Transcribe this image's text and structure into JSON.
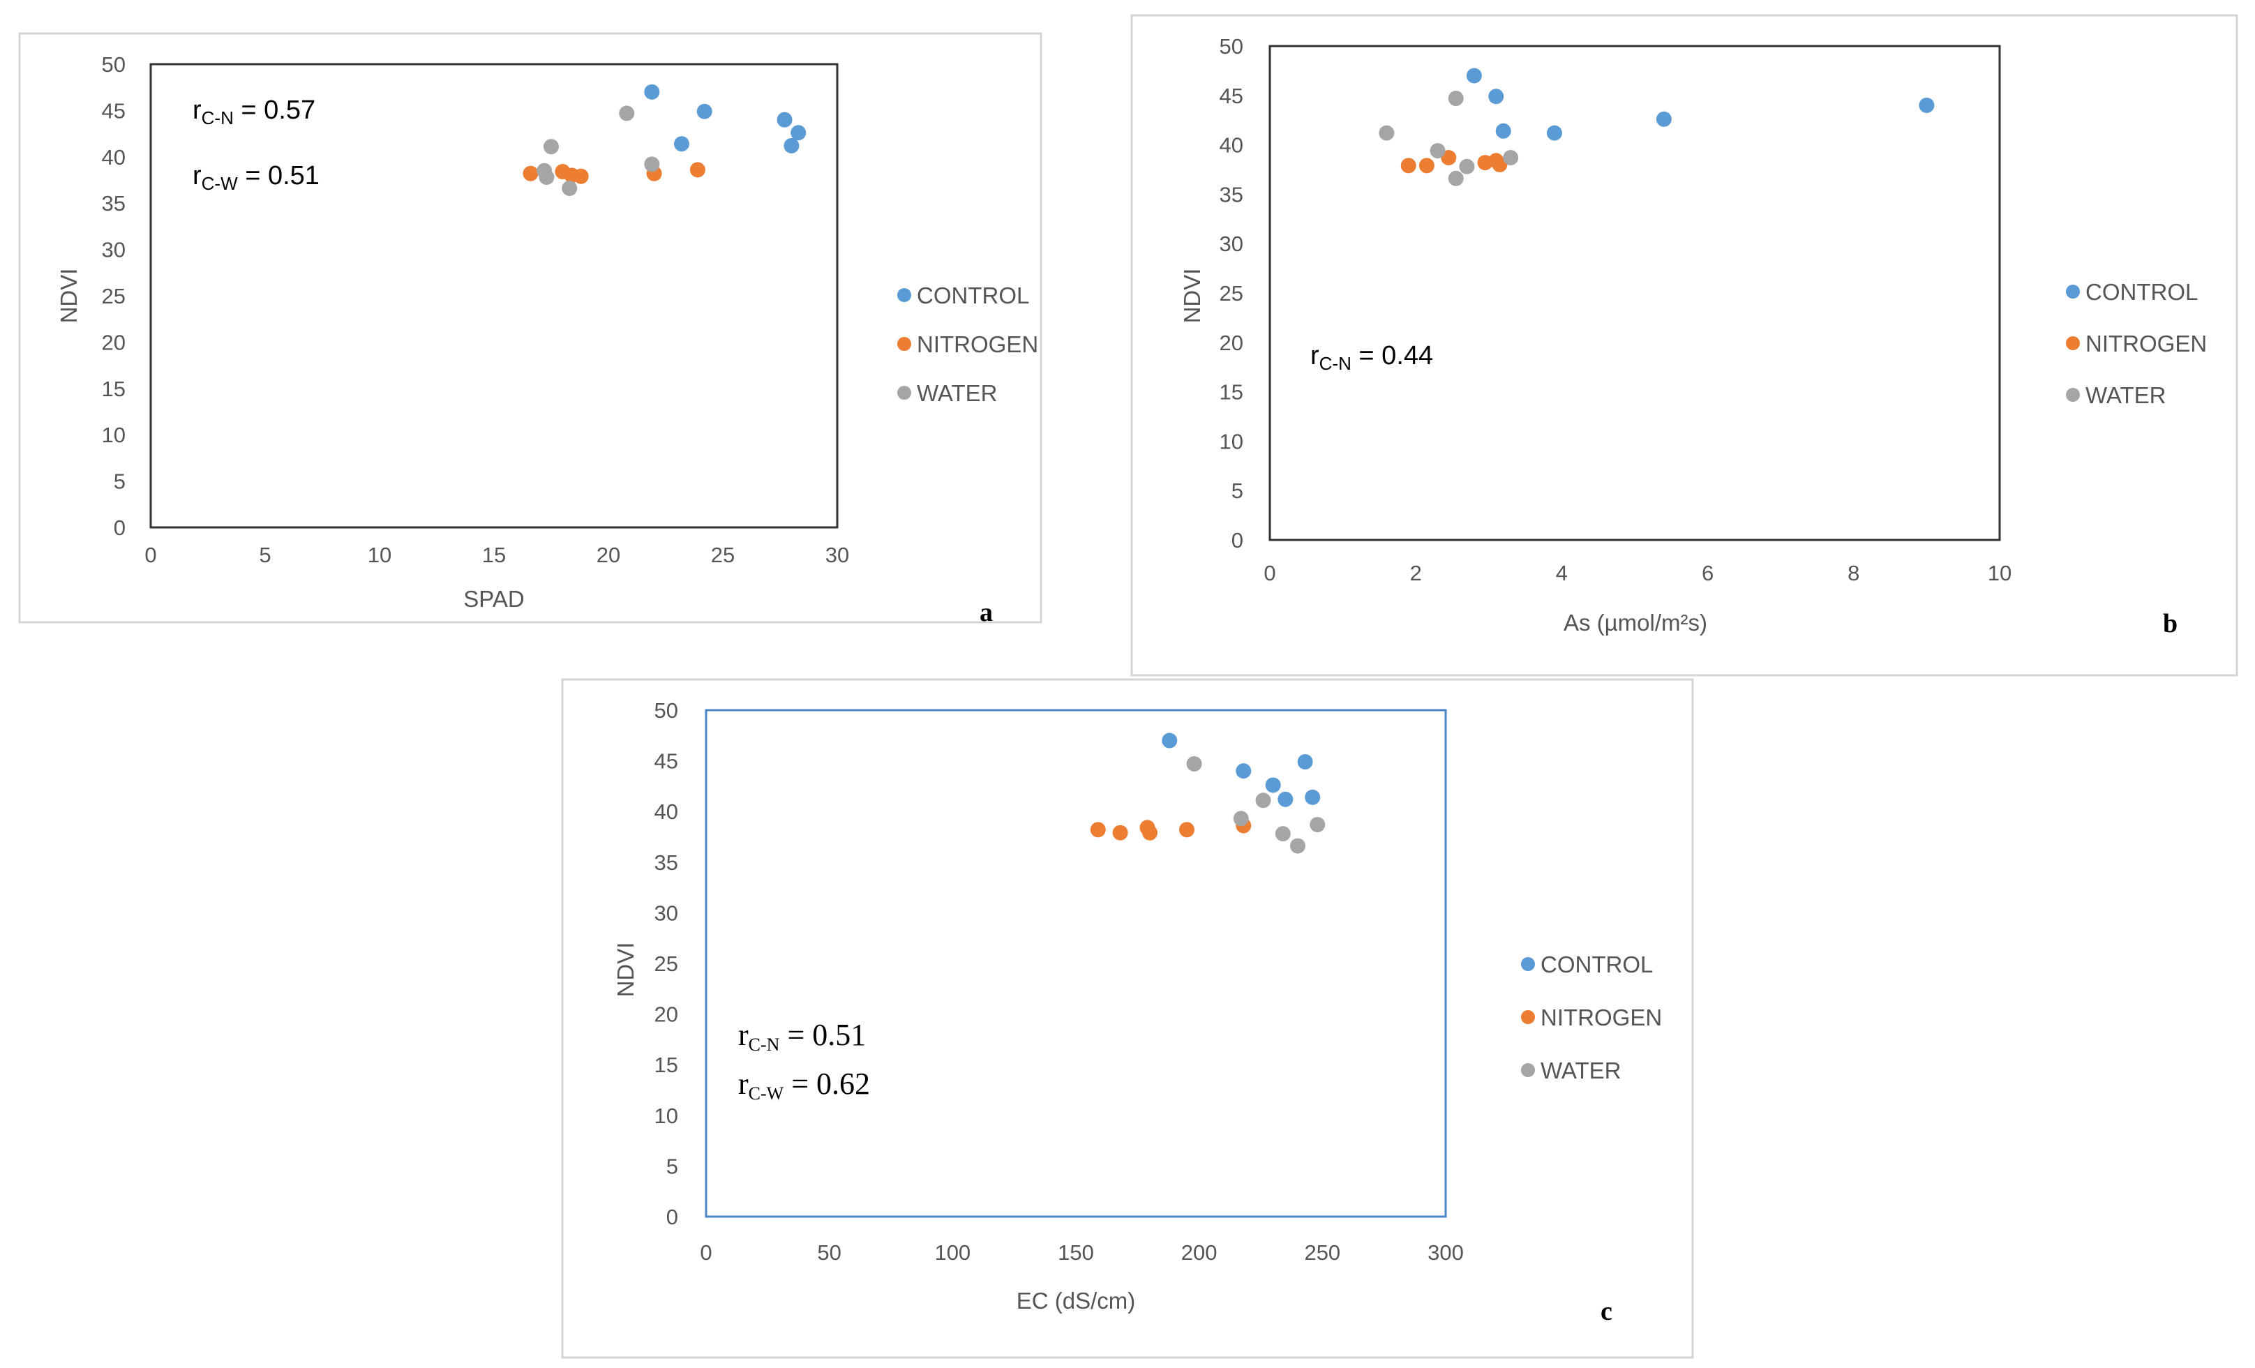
{
  "colors": {
    "CONTROL": "#5b9bd5",
    "NITROGEN": "#ed7d31",
    "WATER": "#a5a5a5"
  },
  "chart_data": [
    {
      "type": "scatter",
      "panel_label": "a",
      "xlabel": "SPAD",
      "ylabel": "NDVI",
      "xlim": [
        0,
        30
      ],
      "ylim": [
        0,
        50
      ],
      "xticks": [
        0,
        5,
        10,
        15,
        20,
        25,
        30
      ],
      "yticks": [
        0,
        5,
        10,
        15,
        20,
        25,
        30,
        35,
        40,
        45,
        50
      ],
      "legend": [
        "CONTROL",
        "NITROGEN",
        "WATER"
      ],
      "annotations": [
        {
          "r": "r",
          "sub": "C-N",
          "rest": " = 0.57"
        },
        {
          "r": "r",
          "sub": "C-W",
          "rest": " = 0.51"
        }
      ],
      "series": [
        {
          "name": "CONTROL",
          "points": [
            [
              21.9,
              47.0
            ],
            [
              24.2,
              44.9
            ],
            [
              23.2,
              41.4
            ],
            [
              27.7,
              44.0
            ],
            [
              28.3,
              42.6
            ],
            [
              28.0,
              41.2
            ]
          ]
        },
        {
          "name": "NITROGEN",
          "points": [
            [
              16.6,
              38.2
            ],
            [
              18.0,
              38.4
            ],
            [
              18.4,
              38.0
            ],
            [
              18.8,
              37.9
            ],
            [
              22.0,
              38.2
            ],
            [
              23.9,
              38.6
            ]
          ]
        },
        {
          "name": "WATER",
          "points": [
            [
              20.8,
              44.7
            ],
            [
              17.5,
              41.1
            ],
            [
              21.9,
              39.2
            ],
            [
              17.2,
              38.5
            ],
            [
              17.3,
              37.8
            ],
            [
              18.3,
              36.6
            ]
          ]
        }
      ]
    },
    {
      "type": "scatter",
      "panel_label": "b",
      "xlabel": "As (µmol/m²s)",
      "ylabel": "NDVI",
      "xlim": [
        0,
        10
      ],
      "ylim": [
        0,
        50
      ],
      "xticks": [
        0,
        2,
        4,
        6,
        8,
        10
      ],
      "yticks": [
        0,
        5,
        10,
        15,
        20,
        25,
        30,
        35,
        40,
        45,
        50
      ],
      "legend": [
        "CONTROL",
        "NITROGEN",
        "WATER"
      ],
      "annotations": [
        {
          "r": "r",
          "sub": "C-N",
          "rest": " = 0.44"
        }
      ],
      "series": [
        {
          "name": "CONTROL",
          "points": [
            [
              2.8,
              47.0
            ],
            [
              3.1,
              44.9
            ],
            [
              3.2,
              41.4
            ],
            [
              3.9,
              41.2
            ],
            [
              5.4,
              42.6
            ],
            [
              9.0,
              44.0
            ]
          ]
        },
        {
          "name": "NITROGEN",
          "points": [
            [
              1.9,
              37.9
            ],
            [
              2.15,
              37.9
            ],
            [
              2.45,
              38.7
            ],
            [
              2.95,
              38.2
            ],
            [
              3.1,
              38.4
            ],
            [
              3.15,
              38.0
            ]
          ]
        },
        {
          "name": "WATER",
          "points": [
            [
              1.6,
              41.2
            ],
            [
              2.3,
              39.4
            ],
            [
              2.55,
              44.7
            ],
            [
              2.55,
              36.6
            ],
            [
              2.7,
              37.8
            ],
            [
              3.3,
              38.7
            ]
          ]
        }
      ]
    },
    {
      "type": "scatter",
      "panel_label": "c",
      "xlabel": "EC (dS/cm)",
      "ylabel": "NDVI",
      "xlim": [
        0,
        300
      ],
      "ylim": [
        0,
        50
      ],
      "xticks": [
        0,
        50,
        100,
        150,
        200,
        250,
        300
      ],
      "yticks": [
        0,
        5,
        10,
        15,
        20,
        25,
        30,
        35,
        40,
        45,
        50
      ],
      "legend": [
        "CONTROL",
        "NITROGEN",
        "WATER"
      ],
      "annotations": [
        {
          "r": "r",
          "sub": "C-N",
          "rest": " = 0.51"
        },
        {
          "r": "r",
          "sub": "C-W",
          "rest": " = 0.62"
        }
      ],
      "series": [
        {
          "name": "CONTROL",
          "points": [
            [
              188,
              47.0
            ],
            [
              218,
              44.0
            ],
            [
              243,
              44.9
            ],
            [
              230,
              42.6
            ],
            [
              235,
              41.2
            ],
            [
              246,
              41.4
            ]
          ]
        },
        {
          "name": "NITROGEN",
          "points": [
            [
              159,
              38.2
            ],
            [
              168,
              37.9
            ],
            [
              179,
              38.4
            ],
            [
              180,
              37.9
            ],
            [
              195,
              38.2
            ],
            [
              218,
              38.6
            ]
          ]
        },
        {
          "name": "WATER",
          "points": [
            [
              198,
              44.7
            ],
            [
              226,
              41.1
            ],
            [
              217,
              39.3
            ],
            [
              234,
              37.8
            ],
            [
              240,
              36.6
            ],
            [
              248,
              38.7
            ]
          ]
        }
      ]
    }
  ]
}
